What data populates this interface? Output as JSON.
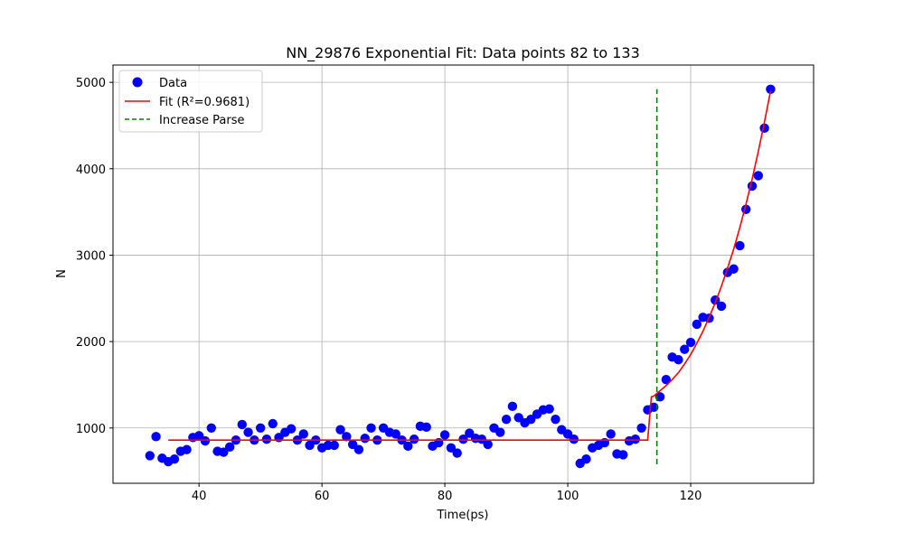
{
  "chart_data": {
    "type": "scatter",
    "title": "NN_29876 Exponential Fit: Data points 82 to 133",
    "xlabel": "Time(ps)",
    "ylabel": "N",
    "xlim": [
      26,
      140
    ],
    "ylim": [
      360,
      5200
    ],
    "xticks": [
      40,
      60,
      80,
      100,
      120
    ],
    "yticks": [
      1000,
      2000,
      3000,
      4000,
      5000
    ],
    "grid": true,
    "legend_position": "top-left",
    "colors": {
      "data": "#0000ff",
      "fit": "#ff0000",
      "parse": "#008000"
    },
    "legend": [
      {
        "label": "Data",
        "marker": "dot",
        "color": "#0000ff"
      },
      {
        "label": "Fit (R²=0.9681)",
        "marker": "line",
        "color": "#ff0000"
      },
      {
        "label": "Increase Parse",
        "marker": "dashed-line",
        "color": "#008000"
      }
    ],
    "series": [
      {
        "name": "Data",
        "kind": "scatter",
        "points": [
          [
            32,
            680
          ],
          [
            33,
            900
          ],
          [
            34,
            650
          ],
          [
            35,
            610
          ],
          [
            36,
            640
          ],
          [
            37,
            730
          ],
          [
            38,
            750
          ],
          [
            39,
            890
          ],
          [
            40,
            910
          ],
          [
            41,
            850
          ],
          [
            42,
            1000
          ],
          [
            43,
            730
          ],
          [
            44,
            720
          ],
          [
            45,
            780
          ],
          [
            46,
            860
          ],
          [
            47,
            1040
          ],
          [
            48,
            950
          ],
          [
            49,
            860
          ],
          [
            50,
            1000
          ],
          [
            51,
            870
          ],
          [
            52,
            1050
          ],
          [
            53,
            890
          ],
          [
            54,
            950
          ],
          [
            55,
            990
          ],
          [
            56,
            860
          ],
          [
            57,
            930
          ],
          [
            58,
            800
          ],
          [
            59,
            860
          ],
          [
            60,
            770
          ],
          [
            61,
            800
          ],
          [
            62,
            800
          ],
          [
            63,
            980
          ],
          [
            64,
            900
          ],
          [
            65,
            810
          ],
          [
            66,
            750
          ],
          [
            67,
            880
          ],
          [
            68,
            1000
          ],
          [
            69,
            860
          ],
          [
            70,
            1000
          ],
          [
            71,
            950
          ],
          [
            72,
            930
          ],
          [
            73,
            860
          ],
          [
            74,
            790
          ],
          [
            75,
            870
          ],
          [
            76,
            1020
          ],
          [
            77,
            1010
          ],
          [
            78,
            790
          ],
          [
            79,
            830
          ],
          [
            80,
            920
          ],
          [
            81,
            770
          ],
          [
            82,
            710
          ],
          [
            83,
            870
          ],
          [
            84,
            940
          ],
          [
            85,
            880
          ],
          [
            86,
            870
          ],
          [
            87,
            810
          ],
          [
            88,
            1000
          ],
          [
            89,
            950
          ],
          [
            90,
            1100
          ],
          [
            91,
            1250
          ],
          [
            92,
            1120
          ],
          [
            93,
            1060
          ],
          [
            94,
            1100
          ],
          [
            95,
            1160
          ],
          [
            96,
            1210
          ],
          [
            97,
            1220
          ],
          [
            98,
            1100
          ],
          [
            99,
            980
          ],
          [
            100,
            930
          ],
          [
            101,
            870
          ],
          [
            102,
            590
          ],
          [
            103,
            640
          ],
          [
            104,
            770
          ],
          [
            105,
            800
          ],
          [
            106,
            830
          ],
          [
            107,
            930
          ],
          [
            108,
            700
          ],
          [
            109,
            690
          ],
          [
            110,
            850
          ],
          [
            111,
            870
          ],
          [
            112,
            1000
          ],
          [
            113,
            1210
          ],
          [
            114,
            1240
          ],
          [
            115,
            1360
          ],
          [
            116,
            1560
          ],
          [
            117,
            1820
          ],
          [
            118,
            1790
          ],
          [
            119,
            1910
          ],
          [
            120,
            1990
          ],
          [
            121,
            2200
          ],
          [
            122,
            2280
          ],
          [
            123,
            2270
          ],
          [
            124,
            2480
          ],
          [
            125,
            2410
          ],
          [
            126,
            2800
          ],
          [
            127,
            2840
          ],
          [
            128,
            3110
          ],
          [
            129,
            3530
          ],
          [
            130,
            3800
          ],
          [
            131,
            3920
          ],
          [
            132,
            4470
          ],
          [
            133,
            4920
          ]
        ]
      },
      {
        "name": "Fit (R²=0.9681)",
        "kind": "line",
        "points": [
          [
            35,
            860
          ],
          [
            113,
            860
          ],
          [
            113.6,
            1360
          ],
          [
            114,
            1370
          ],
          [
            115,
            1430
          ],
          [
            116,
            1490
          ],
          [
            117,
            1560
          ],
          [
            118,
            1640
          ],
          [
            119,
            1740
          ],
          [
            120,
            1850
          ],
          [
            121,
            1980
          ],
          [
            122,
            2120
          ],
          [
            123,
            2280
          ],
          [
            124,
            2450
          ],
          [
            125,
            2640
          ],
          [
            126,
            2850
          ],
          [
            127,
            3070
          ],
          [
            128,
            3320
          ],
          [
            129,
            3590
          ],
          [
            130,
            3880
          ],
          [
            131,
            4200
          ],
          [
            132,
            4540
          ],
          [
            133,
            4900
          ]
        ]
      },
      {
        "name": "Increase Parse",
        "kind": "dashed",
        "points": [
          [
            114.5,
            580
          ],
          [
            114.5,
            4920
          ]
        ]
      }
    ]
  }
}
